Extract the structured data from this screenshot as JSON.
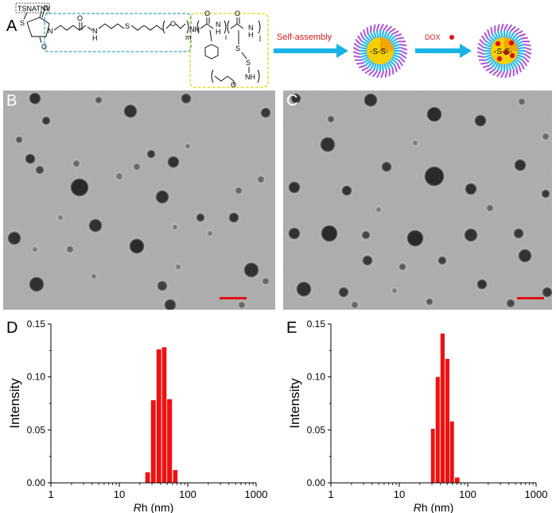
{
  "panel_labels": {
    "a": "A",
    "b": "B",
    "c": "C",
    "d": "D",
    "e": "E"
  },
  "scheme": {
    "peptide_tag": "TSNATNV",
    "subscripts": {
      "m": "m",
      "i": "i",
      "j": "j"
    },
    "labels": {
      "nh": "NH",
      "n": "N",
      "h": "H",
      "s": "S",
      "o": "O"
    },
    "arrow1_label": "Self-assembly",
    "arrow2_label": "DOX",
    "micelle_core_label": "-S-S-",
    "colors": {
      "peg_box": "#3aa6c8",
      "hydrophobic_box": "#e3d60a",
      "arrow": "#19b3e6",
      "core": "#f5cf00",
      "shell": "#2ab6e8",
      "tail": "#b050d8",
      "dox": "#e01010",
      "label_red": "#d41818"
    }
  },
  "tem": {
    "background": "#a9a9a9",
    "scale_bar_color": "#e01010",
    "particle_color": "#2a2a2a"
  },
  "chart_data": [
    {
      "type": "bar",
      "panel": "D",
      "xscale": "log",
      "xlim": [
        1,
        1000
      ],
      "ylim": [
        0,
        0.15
      ],
      "xlabel_italic": "R",
      "xlabel_rest": "h (nm)",
      "ylabel": "Intensity",
      "xticks": [
        "1",
        "10",
        "100",
        "1000"
      ],
      "yticks": [
        "0.00",
        "0.05",
        "0.10",
        "0.15"
      ],
      "bar_color": "#ee1111",
      "bins": [
        {
          "x0": 24,
          "x1": 28,
          "y": 0.01
        },
        {
          "x0": 29,
          "x1": 34,
          "y": 0.078
        },
        {
          "x0": 35,
          "x1": 41,
          "y": 0.126
        },
        {
          "x0": 42,
          "x1": 49,
          "y": 0.128
        },
        {
          "x0": 50,
          "x1": 59,
          "y": 0.079
        },
        {
          "x0": 61,
          "x1": 71,
          "y": 0.012
        }
      ]
    },
    {
      "type": "bar",
      "panel": "E",
      "xscale": "log",
      "xlim": [
        1,
        1000
      ],
      "ylim": [
        0,
        0.15
      ],
      "xlabel_italic": "R",
      "xlabel_rest": "h (nm)",
      "ylabel": "Intensity",
      "xticks": [
        "1",
        "10",
        "100",
        "1000"
      ],
      "yticks": [
        "0.00",
        "0.05",
        "0.10",
        "0.15"
      ],
      "bar_color": "#ee1111",
      "bins": [
        {
          "x0": 29,
          "x1": 33,
          "y": 0.051
        },
        {
          "x0": 34,
          "x1": 39,
          "y": 0.1
        },
        {
          "x0": 40,
          "x1": 46,
          "y": 0.141
        },
        {
          "x0": 47,
          "x1": 54,
          "y": 0.117
        },
        {
          "x0": 55,
          "x1": 63,
          "y": 0.058
        },
        {
          "x0": 65,
          "x1": 76,
          "y": 0.005
        }
      ]
    }
  ]
}
